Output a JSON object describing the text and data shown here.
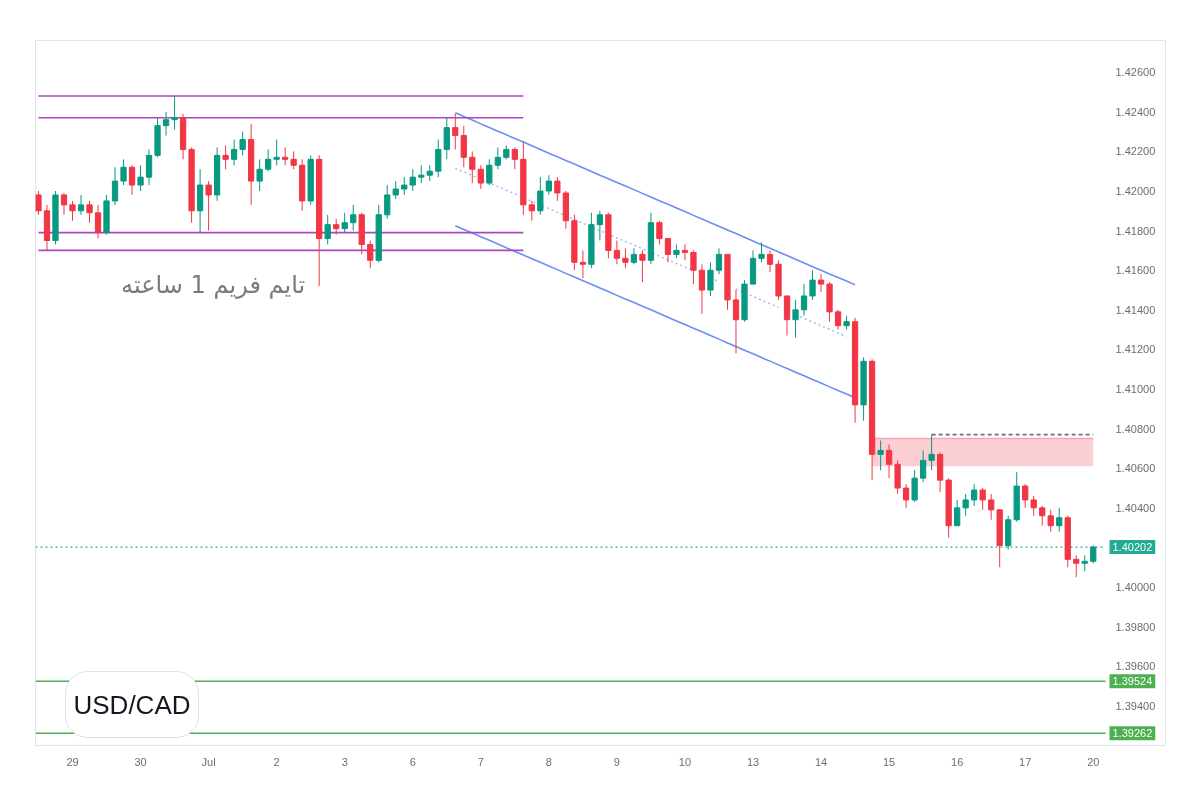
{
  "chart_data": {
    "type": "candlestick",
    "title": "USD/CAD",
    "annotations": [
      "تایم فریم 1 ساعته"
    ],
    "ylim": [
      1.392,
      1.4276
    ],
    "yticks": [
      {
        "value": 1.426,
        "label": "1.42600"
      },
      {
        "value": 1.424,
        "label": "1.42400"
      },
      {
        "value": 1.422,
        "label": "1.42200"
      },
      {
        "value": 1.42,
        "label": "1.42000"
      },
      {
        "value": 1.418,
        "label": "1.41800"
      },
      {
        "value": 1.416,
        "label": "1.41600"
      },
      {
        "value": 1.414,
        "label": "1.41400"
      },
      {
        "value": 1.412,
        "label": "1.41200"
      },
      {
        "value": 1.41,
        "label": "1.41000"
      },
      {
        "value": 1.408,
        "label": "1.40800"
      },
      {
        "value": 1.406,
        "label": "1.40600"
      },
      {
        "value": 1.404,
        "label": "1.40400"
      },
      {
        "value": 1.4,
        "label": "1.40000"
      },
      {
        "value": 1.398,
        "label": "1.39800"
      },
      {
        "value": 1.396,
        "label": "1.39600"
      },
      {
        "value": 1.394,
        "label": "1.39400"
      }
    ],
    "categories": [
      null,
      null,
      null,
      null,
      "29",
      null,
      null,
      null,
      null,
      null,
      null,
      null,
      "30",
      null,
      null,
      null,
      null,
      null,
      null,
      null,
      "Jul",
      null,
      null,
      null,
      null,
      null,
      null,
      null,
      "2",
      null,
      null,
      null,
      null,
      null,
      null,
      null,
      "3",
      null,
      null,
      null,
      null,
      null,
      null,
      null,
      "6",
      null,
      null,
      null,
      null,
      null,
      null,
      null,
      "7",
      null,
      null,
      null,
      null,
      null,
      null,
      null,
      "8",
      null,
      null,
      null,
      null,
      null,
      null,
      null,
      "9",
      null,
      null,
      null,
      null,
      null,
      null,
      null,
      "10",
      null,
      null,
      null,
      null,
      null,
      null,
      null,
      "13",
      null,
      null,
      null,
      null,
      null,
      null,
      null,
      "14",
      null,
      null,
      null,
      null,
      null,
      null,
      null,
      "15",
      null,
      null,
      null,
      null,
      null,
      null,
      null,
      "16",
      null,
      null,
      null,
      null,
      null,
      null,
      null,
      "17",
      null,
      null,
      null,
      null,
      null,
      null,
      null,
      "20"
    ],
    "ohlc": [
      [
        1.4198,
        1.42,
        1.4188,
        1.419
      ],
      [
        1.419,
        1.4193,
        1.417,
        1.4175
      ],
      [
        1.4175,
        1.42,
        1.4173,
        1.4198
      ],
      [
        1.4198,
        1.4199,
        1.4188,
        1.4193
      ],
      [
        1.4193,
        1.4195,
        1.4185,
        1.419
      ],
      [
        1.419,
        1.4198,
        1.4188,
        1.4193
      ],
      [
        1.4193,
        1.4195,
        1.4184,
        1.4189
      ],
      [
        1.4189,
        1.4193,
        1.4176,
        1.4179
      ],
      [
        1.4179,
        1.4198,
        1.4178,
        1.4195
      ],
      [
        1.4195,
        1.4212,
        1.4193,
        1.4205
      ],
      [
        1.4205,
        1.4216,
        1.4203,
        1.4212
      ],
      [
        1.4212,
        1.4213,
        1.4198,
        1.4203
      ],
      [
        1.4203,
        1.4213,
        1.42,
        1.4207
      ],
      [
        1.4207,
        1.4221,
        1.4203,
        1.4218
      ],
      [
        1.4218,
        1.4237,
        1.4217,
        1.4233
      ],
      [
        1.4233,
        1.424,
        1.4228,
        1.4236
      ],
      [
        1.4236,
        1.4248,
        1.4231,
        1.4237
      ],
      [
        1.4237,
        1.4239,
        1.4216,
        1.4221
      ],
      [
        1.4221,
        1.4222,
        1.4184,
        1.419
      ],
      [
        1.419,
        1.4211,
        1.4179,
        1.4203
      ],
      [
        1.4203,
        1.4205,
        1.418,
        1.4198
      ],
      [
        1.4198,
        1.4222,
        1.4195,
        1.4218
      ],
      [
        1.4218,
        1.4223,
        1.4211,
        1.4216
      ],
      [
        1.4216,
        1.4226,
        1.4213,
        1.4221
      ],
      [
        1.4221,
        1.423,
        1.4218,
        1.4226
      ],
      [
        1.4226,
        1.4234,
        1.4193,
        1.4205
      ],
      [
        1.4205,
        1.4216,
        1.42,
        1.4211
      ],
      [
        1.4211,
        1.4221,
        1.421,
        1.4216
      ],
      [
        1.4216,
        1.4226,
        1.4213,
        1.4217
      ],
      [
        1.4217,
        1.4222,
        1.4213,
        1.4216
      ],
      [
        1.4216,
        1.422,
        1.4211,
        1.4213
      ],
      [
        1.4213,
        1.4216,
        1.419,
        1.4195
      ],
      [
        1.4195,
        1.4218,
        1.4193,
        1.4216
      ],
      [
        1.4216,
        1.4218,
        1.4152,
        1.4176
      ],
      [
        1.4176,
        1.4188,
        1.4173,
        1.4183
      ],
      [
        1.4183,
        1.4186,
        1.4178,
        1.4181
      ],
      [
        1.4181,
        1.4189,
        1.4179,
        1.4184
      ],
      [
        1.4184,
        1.4193,
        1.418,
        1.4188
      ],
      [
        1.4188,
        1.4189,
        1.4168,
        1.4173
      ],
      [
        1.4173,
        1.4175,
        1.4161,
        1.4165
      ],
      [
        1.4165,
        1.4193,
        1.4164,
        1.4188
      ],
      [
        1.4188,
        1.4203,
        1.4186,
        1.4198
      ],
      [
        1.4198,
        1.4205,
        1.4196,
        1.4201
      ],
      [
        1.4201,
        1.4207,
        1.4198,
        1.4203
      ],
      [
        1.4203,
        1.4211,
        1.42,
        1.4207
      ],
      [
        1.4207,
        1.4213,
        1.4204,
        1.4208
      ],
      [
        1.4208,
        1.4213,
        1.4205,
        1.421
      ],
      [
        1.421,
        1.4226,
        1.4207,
        1.4221
      ],
      [
        1.4221,
        1.4237,
        1.4216,
        1.4232
      ],
      [
        1.4232,
        1.4239,
        1.4221,
        1.4228
      ],
      [
        1.4228,
        1.4233,
        1.4212,
        1.4217
      ],
      [
        1.4217,
        1.422,
        1.4204,
        1.4211
      ],
      [
        1.4211,
        1.4213,
        1.4201,
        1.4204
      ],
      [
        1.4204,
        1.4216,
        1.4203,
        1.4213
      ],
      [
        1.4213,
        1.4222,
        1.4211,
        1.4217
      ],
      [
        1.4217,
        1.4223,
        1.4216,
        1.4221
      ],
      [
        1.4221,
        1.4222,
        1.4211,
        1.4216
      ],
      [
        1.4216,
        1.4225,
        1.4188,
        1.4193
      ],
      [
        1.4193,
        1.4195,
        1.4185,
        1.419
      ],
      [
        1.419,
        1.4207,
        1.4188,
        1.42
      ],
      [
        1.42,
        1.4208,
        1.4198,
        1.4205
      ],
      [
        1.4205,
        1.4207,
        1.4195,
        1.4199
      ],
      [
        1.4199,
        1.42,
        1.4181,
        1.4185
      ],
      [
        1.4185,
        1.4188,
        1.416,
        1.4164
      ],
      [
        1.4164,
        1.417,
        1.4156,
        1.4163
      ],
      [
        1.4163,
        1.4189,
        1.4161,
        1.4183
      ],
      [
        1.4183,
        1.419,
        1.4175,
        1.4188
      ],
      [
        1.4188,
        1.4189,
        1.4166,
        1.417
      ],
      [
        1.417,
        1.4175,
        1.4163,
        1.4166
      ],
      [
        1.4166,
        1.4171,
        1.4161,
        1.4164
      ],
      [
        1.4164,
        1.4171,
        1.4163,
        1.4168
      ],
      [
        1.4168,
        1.417,
        1.4154,
        1.4165
      ],
      [
        1.4165,
        1.4189,
        1.4163,
        1.4184
      ],
      [
        1.4184,
        1.4185,
        1.4173,
        1.4176
      ],
      [
        1.4176,
        1.4176,
        1.4164,
        1.4168
      ],
      [
        1.4168,
        1.4173,
        1.4166,
        1.417
      ],
      [
        1.417,
        1.4173,
        1.4165,
        1.4169
      ],
      [
        1.4169,
        1.417,
        1.4153,
        1.416
      ],
      [
        1.416,
        1.4163,
        1.4138,
        1.415
      ],
      [
        1.415,
        1.4164,
        1.4147,
        1.416
      ],
      [
        1.416,
        1.4171,
        1.4158,
        1.4168
      ],
      [
        1.4168,
        1.4168,
        1.414,
        1.4145
      ],
      [
        1.4145,
        1.415,
        1.4118,
        1.4135
      ],
      [
        1.4135,
        1.4155,
        1.4134,
        1.4153
      ],
      [
        1.4153,
        1.417,
        1.4153,
        1.4166
      ],
      [
        1.4166,
        1.4174,
        1.4164,
        1.4168
      ],
      [
        1.4168,
        1.417,
        1.4159,
        1.4163
      ],
      [
        1.4163,
        1.4165,
        1.4145,
        1.4147
      ],
      [
        1.4147,
        1.4147,
        1.4127,
        1.4135
      ],
      [
        1.4135,
        1.4145,
        1.4126,
        1.414
      ],
      [
        1.414,
        1.4153,
        1.4137,
        1.4147
      ],
      [
        1.4147,
        1.416,
        1.4145,
        1.4155
      ],
      [
        1.4155,
        1.4158,
        1.4149,
        1.4153
      ],
      [
        1.4153,
        1.4154,
        1.4134,
        1.4139
      ],
      [
        1.4139,
        1.414,
        1.413,
        1.4132
      ],
      [
        1.4132,
        1.4137,
        1.413,
        1.4134
      ],
      [
        1.4134,
        1.4136,
        1.4083,
        1.4092
      ],
      [
        1.4092,
        1.4116,
        1.4084,
        1.4114
      ],
      [
        1.4114,
        1.4115,
        1.4054,
        1.4067
      ],
      [
        1.4067,
        1.4074,
        1.4059,
        1.4069
      ],
      [
        1.4069,
        1.4072,
        1.4055,
        1.4062
      ],
      [
        1.4062,
        1.4064,
        1.4047,
        1.405
      ],
      [
        1.405,
        1.4052,
        1.404,
        1.4044
      ],
      [
        1.4044,
        1.4059,
        1.4043,
        1.4055
      ],
      [
        1.4055,
        1.4069,
        1.4053,
        1.4064
      ],
      [
        1.4064,
        1.4077,
        1.4059,
        1.4067
      ],
      [
        1.4067,
        1.4068,
        1.4048,
        1.4054
      ],
      [
        1.4054,
        1.4055,
        1.4025,
        1.4031
      ],
      [
        1.4031,
        1.4044,
        1.4031,
        1.404
      ],
      [
        1.404,
        1.4047,
        1.4036,
        1.4044
      ],
      [
        1.4044,
        1.4052,
        1.4041,
        1.4049
      ],
      [
        1.4049,
        1.405,
        1.4039,
        1.4044
      ],
      [
        1.4044,
        1.4047,
        1.4034,
        1.4039
      ],
      [
        1.4039,
        1.4039,
        1.401,
        1.4021
      ],
      [
        1.4021,
        1.4036,
        1.4019,
        1.4034
      ],
      [
        1.4034,
        1.4058,
        1.4033,
        1.4051
      ],
      [
        1.4051,
        1.4052,
        1.404,
        1.4044
      ],
      [
        1.4044,
        1.4046,
        1.4036,
        1.404
      ],
      [
        1.404,
        1.4041,
        1.4031,
        1.4036
      ],
      [
        1.4036,
        1.4039,
        1.4028,
        1.4031
      ],
      [
        1.4031,
        1.404,
        1.4028,
        1.4035
      ],
      [
        1.4035,
        1.4036,
        1.401,
        1.4014
      ],
      [
        1.4014,
        1.4016,
        1.4005,
        1.4012
      ],
      [
        1.4012,
        1.4016,
        1.4008,
        1.4013
      ],
      [
        1.4013,
        1.4021,
        1.4012,
        1.40202
      ]
    ],
    "colors": [
      "#f23645",
      "#f23645",
      "#089981",
      "#f23645",
      "#f23645",
      "#089981",
      "#f23645",
      "#f23645",
      "#089981",
      "#089981",
      "#089981",
      "#f23645",
      "#089981",
      "#089981",
      "#089981",
      "#089981",
      "#089981",
      "#f23645",
      "#f23645",
      "#089981",
      "#f23645",
      "#089981",
      "#f23645",
      "#089981",
      "#089981",
      "#f23645",
      "#089981",
      "#089981",
      "#089981",
      "#f23645",
      "#f23645",
      "#f23645",
      "#089981",
      "#f23645",
      "#089981",
      "#f23645",
      "#089981",
      "#089981",
      "#f23645",
      "#f23645",
      "#089981",
      "#089981",
      "#089981",
      "#089981",
      "#089981",
      "#089981",
      "#089981",
      "#089981",
      "#089981",
      "#f23645",
      "#f23645",
      "#f23645",
      "#f23645",
      "#089981",
      "#089981",
      "#089981",
      "#f23645",
      "#f23645",
      "#f23645",
      "#089981",
      "#089981",
      "#f23645",
      "#f23645",
      "#f23645",
      "#f23645",
      "#089981",
      "#089981",
      "#f23645",
      "#f23645",
      "#f23645",
      "#089981",
      "#f23645",
      "#089981",
      "#f23645",
      "#f23645",
      "#089981",
      "#f23645",
      "#f23645",
      "#f23645",
      "#089981",
      "#089981",
      "#f23645",
      "#f23645",
      "#089981",
      "#089981",
      "#089981",
      "#f23645",
      "#f23645",
      "#f23645",
      "#089981",
      "#089981",
      "#089981",
      "#f23645",
      "#f23645",
      "#f23645",
      "#089981",
      "#f23645",
      "#089981",
      "#f23645",
      "#089981",
      "#f23645",
      "#f23645",
      "#f23645",
      "#089981",
      "#089981",
      "#089981",
      "#f23645",
      "#f23645",
      "#089981",
      "#089981",
      "#089981",
      "#f23645",
      "#f23645",
      "#f23645",
      "#089981",
      "#089981",
      "#f23645",
      "#f23645",
      "#f23645",
      "#f23645",
      "#089981",
      "#f23645",
      "#f23645",
      "#089981",
      "#089981"
    ],
    "series": [
      {
        "type": "line",
        "color": "#6b8ef5",
        "values": [
          null,
          null,
          null,
          null,
          null,
          null,
          null,
          null,
          null,
          null,
          null,
          null,
          null,
          null,
          null,
          null,
          null,
          null,
          null,
          null,
          null,
          null,
          null,
          null,
          null,
          null,
          null,
          null,
          null,
          null,
          null,
          null,
          null,
          null,
          null,
          null,
          null,
          null,
          null,
          null,
          null,
          null,
          null,
          null,
          null,
          null,
          null,
          null,
          null,
          1.42395,
          1.42376,
          1.42358,
          1.42339,
          1.42321,
          1.42302,
          1.42284,
          1.42265,
          1.42247,
          1.42228,
          1.4221,
          1.42191,
          1.42173,
          1.42154,
          1.42136,
          1.42117,
          1.42099,
          1.4208,
          1.42062,
          1.42043,
          1.42025,
          1.42007,
          1.41988,
          1.4197,
          1.41951,
          1.41933,
          1.41914,
          1.41896,
          1.41877,
          1.41859,
          1.4184,
          1.41822,
          1.41803,
          1.41785,
          1.41766,
          1.41748,
          1.41729,
          1.41711,
          1.41692,
          1.41674,
          1.41655,
          1.41637,
          1.41618,
          1.416,
          1.41581,
          1.41563,
          1.41545,
          1.41526,
          null,
          null,
          null,
          null,
          null,
          null,
          null,
          null,
          null,
          null,
          null,
          null,
          null,
          null,
          null,
          null,
          null,
          null,
          null,
          null,
          null,
          null,
          null,
          null,
          null,
          null,
          null,
          null
        ]
      },
      {
        "type": "line",
        "color": "#6b8ef5",
        "values": [
          null,
          null,
          null,
          null,
          null,
          null,
          null,
          null,
          null,
          null,
          null,
          null,
          null,
          null,
          null,
          null,
          null,
          null,
          null,
          null,
          null,
          null,
          null,
          null,
          null,
          null,
          null,
          null,
          null,
          null,
          null,
          null,
          null,
          null,
          null,
          null,
          null,
          null,
          null,
          null,
          null,
          null,
          null,
          null,
          null,
          null,
          null,
          null,
          null,
          1.41825,
          1.41806,
          1.41788,
          1.41769,
          1.41751,
          1.41732,
          1.41714,
          1.41695,
          1.41677,
          1.41658,
          1.4164,
          1.41621,
          1.41603,
          1.41584,
          1.41566,
          1.41547,
          1.41529,
          1.4151,
          1.41492,
          1.41473,
          1.41455,
          1.41437,
          1.41418,
          1.414,
          1.41381,
          1.41363,
          1.41344,
          1.41326,
          1.41307,
          1.41289,
          1.4127,
          1.41252,
          1.41233,
          1.41215,
          1.41196,
          1.41178,
          1.41159,
          1.41141,
          1.41122,
          1.41104,
          1.41085,
          1.41067,
          1.41048,
          1.4103,
          1.41011,
          1.40993,
          1.40975,
          1.40956,
          null,
          null,
          null,
          null,
          null,
          null,
          null,
          null,
          null,
          null,
          null,
          null,
          null,
          null,
          null,
          null,
          null,
          null,
          null,
          null,
          null,
          null,
          null,
          null,
          null,
          null,
          null,
          null
        ]
      },
      {
        "type": "line",
        "color": "#a9bdf7",
        "line_style": "dotted",
        "values": [
          null,
          null,
          null,
          null,
          null,
          null,
          null,
          null,
          null,
          null,
          null,
          null,
          null,
          null,
          null,
          null,
          null,
          null,
          null,
          null,
          null,
          null,
          null,
          null,
          null,
          null,
          null,
          null,
          null,
          null,
          null,
          null,
          null,
          null,
          null,
          null,
          null,
          null,
          null,
          null,
          null,
          null,
          null,
          null,
          null,
          null,
          null,
          null,
          null,
          1.42115,
          1.42096,
          1.42078,
          1.42059,
          1.42041,
          1.42022,
          1.42004,
          1.41985,
          1.41967,
          1.41948,
          1.4193,
          1.41911,
          1.41893,
          1.41874,
          1.41856,
          1.41837,
          1.41819,
          1.418,
          1.41782,
          1.41763,
          1.41745,
          1.41727,
          1.41708,
          1.4169,
          1.41671,
          1.41653,
          1.41634,
          1.41616,
          1.41597,
          null,
          1.4156,
          1.41542,
          null,
          1.41505,
          1.41486,
          1.41468,
          1.41449,
          1.41431,
          1.41412,
          null,
          1.41375,
          1.41357,
          1.41338,
          1.4132,
          1.41301,
          1.41283,
          1.41265,
          null,
          null,
          null,
          null,
          null,
          null,
          null,
          null,
          null,
          null,
          null,
          null,
          null,
          null,
          null,
          null,
          null,
          null,
          null,
          null,
          null,
          null,
          null,
          null,
          null,
          null,
          null,
          null,
          null
        ]
      },
      {
        "type": "line",
        "color": "#ab47bc",
        "values": [
          1.4248,
          1.4248,
          1.4248,
          1.4248,
          1.4248,
          1.4248,
          1.4248,
          1.4248,
          1.4248,
          1.4248,
          1.4248,
          1.4248,
          1.4248,
          1.4248,
          1.4248,
          1.4248,
          1.4248,
          1.4248,
          1.4248,
          1.4248,
          1.4248,
          1.4248,
          1.4248,
          1.4248,
          1.4248,
          1.4248,
          1.4248,
          1.4248,
          1.4248,
          1.4248,
          1.4248,
          1.4248,
          1.4248,
          1.4248,
          1.4248,
          1.4248,
          1.4248,
          1.4248,
          1.4248,
          1.4248,
          1.4248,
          1.4248,
          1.4248,
          1.4248,
          1.4248,
          1.4248,
          1.4248,
          1.4248,
          1.4248,
          1.4248,
          1.4248,
          1.4248,
          1.4248,
          1.4248,
          1.4248,
          1.4248,
          1.4248,
          1.4248,
          null,
          null,
          null,
          null,
          null,
          null,
          null,
          null,
          null,
          null,
          null,
          null,
          null,
          null,
          null,
          null,
          null,
          null,
          null,
          null,
          null,
          null,
          null,
          null,
          null,
          null,
          null,
          null,
          null,
          null,
          null,
          null,
          null,
          null,
          null,
          null,
          null,
          null,
          null,
          null,
          null,
          null,
          null,
          null,
          null,
          null,
          null,
          null,
          null,
          null,
          null,
          null,
          null,
          null,
          null,
          null,
          null,
          null,
          null,
          null,
          null,
          null,
          null,
          null,
          null,
          null,
          null
        ]
      },
      {
        "type": "line",
        "color": "#ab47bc",
        "values": [
          1.4237,
          1.4237,
          1.4237,
          1.4237,
          1.4237,
          1.4237,
          1.4237,
          1.4237,
          1.4237,
          1.4237,
          1.4237,
          1.4237,
          1.4237,
          1.4237,
          1.4237,
          1.4237,
          1.4237,
          1.4237,
          1.4237,
          1.4237,
          1.4237,
          1.4237,
          1.4237,
          1.4237,
          1.4237,
          1.4237,
          1.4237,
          1.4237,
          1.4237,
          1.4237,
          1.4237,
          1.4237,
          1.4237,
          1.4237,
          1.4237,
          1.4237,
          1.4237,
          1.4237,
          1.4237,
          1.4237,
          1.4237,
          1.4237,
          1.4237,
          1.4237,
          1.4237,
          1.4237,
          1.4237,
          1.4237,
          1.4237,
          1.4237,
          1.4237,
          1.4237,
          1.4237,
          1.4237,
          1.4237,
          1.4237,
          1.4237,
          1.4237,
          null,
          null,
          null,
          null,
          null,
          null,
          null,
          null,
          null,
          null,
          null,
          null,
          null,
          null,
          null,
          null,
          null,
          null,
          null,
          null,
          null,
          null,
          null,
          null,
          null,
          null,
          null,
          null,
          null,
          null,
          null,
          null,
          null,
          null,
          null,
          null,
          null,
          null,
          null,
          null,
          null,
          null,
          null,
          null,
          null,
          null,
          null,
          null,
          null,
          null,
          null,
          null,
          null,
          null,
          null,
          null,
          null,
          null,
          null,
          null,
          null,
          null,
          null,
          null,
          null,
          null,
          null
        ]
      },
      {
        "type": "line",
        "color": "#ab47bc",
        "values": [
          1.4179,
          1.4179,
          1.4179,
          1.4179,
          1.4179,
          1.4179,
          1.4179,
          1.4179,
          1.4179,
          1.4179,
          1.4179,
          1.4179,
          1.4179,
          1.4179,
          1.4179,
          1.4179,
          1.4179,
          1.4179,
          1.4179,
          1.4179,
          1.4179,
          1.4179,
          1.4179,
          1.4179,
          1.4179,
          1.4179,
          1.4179,
          1.4179,
          1.4179,
          1.4179,
          1.4179,
          1.4179,
          1.4179,
          1.4179,
          1.4179,
          1.4179,
          1.4179,
          1.4179,
          1.4179,
          1.4179,
          1.4179,
          1.4179,
          1.4179,
          1.4179,
          1.4179,
          1.4179,
          1.4179,
          1.4179,
          1.4179,
          1.4179,
          1.4179,
          1.4179,
          1.4179,
          1.4179,
          1.4179,
          1.4179,
          1.4179,
          1.4179,
          null,
          null,
          null,
          null,
          null,
          null,
          null,
          null,
          null,
          null,
          null,
          null,
          null,
          null,
          null,
          null,
          null,
          null,
          null,
          null,
          null,
          null,
          null,
          null,
          null,
          null,
          null,
          null,
          null,
          null,
          null,
          null,
          null,
          null,
          null,
          null,
          null,
          null,
          null,
          null,
          null,
          null,
          null,
          null,
          null,
          null,
          null,
          null,
          null,
          null,
          null,
          null,
          null,
          null,
          null,
          null,
          null,
          null,
          null,
          null,
          null,
          null,
          null,
          null,
          null,
          null,
          null
        ]
      },
      {
        "type": "line",
        "color": "#ab47bc",
        "values": [
          1.417,
          1.417,
          1.417,
          1.417,
          1.417,
          1.417,
          1.417,
          1.417,
          1.417,
          1.417,
          1.417,
          1.417,
          1.417,
          1.417,
          1.417,
          1.417,
          1.417,
          1.417,
          1.417,
          1.417,
          1.417,
          1.417,
          1.417,
          1.417,
          1.417,
          1.417,
          1.417,
          1.417,
          1.417,
          1.417,
          1.417,
          1.417,
          1.417,
          1.417,
          1.417,
          1.417,
          1.417,
          1.417,
          1.417,
          1.417,
          1.417,
          1.417,
          1.417,
          1.417,
          1.417,
          1.417,
          1.417,
          1.417,
          1.417,
          1.417,
          1.417,
          1.417,
          1.417,
          1.417,
          1.417,
          1.417,
          1.417,
          1.417,
          null,
          null,
          null,
          null,
          null,
          null,
          null,
          null,
          null,
          null,
          null,
          null,
          null,
          null,
          null,
          null,
          null,
          null,
          null,
          null,
          null,
          null,
          null,
          null,
          null,
          null,
          null,
          null,
          null,
          null,
          null,
          null,
          null,
          null,
          null,
          null,
          null,
          null,
          null,
          null,
          null,
          null,
          null,
          null,
          null,
          null,
          null,
          null,
          null,
          null,
          null,
          null,
          null,
          null,
          null,
          null,
          null,
          null,
          null,
          null,
          null,
          null,
          null,
          null,
          null,
          null,
          null
        ]
      },
      {
        "type": "line",
        "color": "#f7a8ae",
        "values": [
          null,
          null,
          null,
          null,
          null,
          null,
          null,
          null,
          null,
          null,
          null,
          null,
          null,
          null,
          null,
          null,
          null,
          null,
          null,
          null,
          null,
          null,
          null,
          null,
          null,
          null,
          null,
          null,
          null,
          null,
          null,
          null,
          null,
          null,
          null,
          null,
          null,
          null,
          null,
          null,
          null,
          null,
          null,
          null,
          null,
          null,
          null,
          null,
          null,
          null,
          null,
          null,
          null,
          null,
          null,
          null,
          null,
          null,
          null,
          null,
          null,
          null,
          null,
          null,
          null,
          null,
          null,
          null,
          null,
          null,
          null,
          null,
          null,
          null,
          null,
          null,
          null,
          null,
          null,
          null,
          null,
          null,
          null,
          null,
          null,
          null,
          null,
          null,
          null,
          null,
          null,
          null,
          null,
          null,
          null,
          null,
          null,
          null,
          1.4075,
          1.4075,
          1.4075,
          1.4075,
          1.4075,
          1.4075,
          1.4075,
          1.4075,
          1.4075,
          1.4075,
          1.4075,
          1.4075,
          1.4075,
          1.4075,
          1.4075,
          1.4075,
          1.4075,
          1.4075,
          1.4075,
          1.4075,
          1.4075,
          1.4075,
          1.4075,
          1.4075,
          1.4075,
          1.4075,
          1.4075
        ],
        "upper": [
          null,
          null,
          null,
          null,
          null,
          null,
          null,
          null,
          null,
          null,
          null,
          null,
          null,
          null,
          null,
          null,
          null,
          null,
          null,
          null,
          null,
          null,
          null,
          null,
          null,
          null,
          null,
          null,
          null,
          null,
          null,
          null,
          null,
          null,
          null,
          null,
          null,
          null,
          null,
          null,
          null,
          null,
          null,
          null,
          null,
          null,
          null,
          null,
          null,
          null,
          null,
          null,
          null,
          null,
          null,
          null,
          null,
          null,
          null,
          null,
          null,
          null,
          null,
          null,
          null,
          null,
          null,
          null,
          null,
          null,
          null,
          null,
          null,
          null,
          null,
          null,
          null,
          null,
          null,
          null,
          null,
          null,
          null,
          null,
          null,
          null,
          null,
          null,
          null,
          null,
          null,
          null,
          null,
          null,
          null,
          null,
          null,
          null,
          1.4075,
          1.4075,
          1.4075,
          1.4075,
          1.4075,
          1.4075,
          1.4075,
          1.4075,
          1.4075,
          1.4075,
          1.4075,
          1.4075,
          1.4075,
          1.4075,
          1.4075,
          1.4075,
          1.4075,
          1.4075,
          1.4075,
          1.4075,
          1.4075,
          1.4075,
          1.4075,
          1.4075,
          1.4075,
          1.4075,
          1.4075
        ],
        "lower": [
          null,
          null,
          null,
          null,
          null,
          null,
          null,
          null,
          null,
          null,
          null,
          null,
          null,
          null,
          null,
          null,
          null,
          null,
          null,
          null,
          null,
          null,
          null,
          null,
          null,
          null,
          null,
          null,
          null,
          null,
          null,
          null,
          null,
          null,
          null,
          null,
          null,
          null,
          null,
          null,
          null,
          null,
          null,
          null,
          null,
          null,
          null,
          null,
          null,
          null,
          null,
          null,
          null,
          null,
          null,
          null,
          null,
          null,
          null,
          null,
          null,
          null,
          null,
          null,
          null,
          null,
          null,
          null,
          null,
          null,
          null,
          null,
          null,
          null,
          null,
          null,
          null,
          null,
          null,
          null,
          null,
          null,
          null,
          null,
          null,
          null,
          null,
          null,
          null,
          null,
          null,
          null,
          null,
          null,
          null,
          null,
          null,
          null,
          1.4061,
          1.4061,
          1.4061,
          1.4061,
          1.4061,
          1.4061,
          1.4061,
          1.4061,
          1.4061,
          1.4061,
          1.4061,
          1.4061,
          1.4061,
          1.4061,
          1.4061,
          1.4061,
          1.4061,
          1.4061,
          1.4061,
          1.4061,
          1.4061,
          1.4061,
          1.4061,
          1.4061,
          1.4061,
          1.4061,
          1.4061
        ]
      },
      {
        "type": "line",
        "color": "#6a6d78",
        "line_style": "dashed",
        "values": [
          null,
          null,
          null,
          null,
          null,
          null,
          null,
          null,
          null,
          null,
          null,
          null,
          null,
          null,
          null,
          null,
          null,
          null,
          null,
          null,
          null,
          null,
          null,
          null,
          null,
          null,
          null,
          null,
          null,
          null,
          null,
          null,
          null,
          null,
          null,
          null,
          null,
          null,
          null,
          null,
          null,
          null,
          null,
          null,
          null,
          null,
          null,
          null,
          null,
          null,
          null,
          null,
          null,
          null,
          null,
          null,
          null,
          null,
          null,
          null,
          null,
          null,
          null,
          null,
          null,
          null,
          null,
          null,
          null,
          null,
          null,
          null,
          null,
          null,
          null,
          null,
          null,
          null,
          null,
          null,
          null,
          null,
          null,
          null,
          null,
          null,
          null,
          null,
          null,
          null,
          null,
          null,
          null,
          null,
          null,
          null,
          null,
          null,
          null,
          null,
          null,
          null,
          null,
          null,
          null,
          1.4077,
          1.4077,
          1.4077,
          1.4077,
          1.4077,
          1.4077,
          1.4077,
          1.4077,
          1.4077,
          1.4077,
          1.4077,
          1.4077,
          1.4077,
          1.4077,
          1.4077,
          1.4077,
          1.4077,
          1.4077,
          1.4077,
          1.4077
        ]
      }
    ],
    "ref_lines": [
      {
        "axis": "y",
        "value": 1.40202,
        "label": "1.40202",
        "color": "#22ab94",
        "line_style": "dotted"
      },
      {
        "axis": "y",
        "value": 1.39524,
        "label": "1.39524",
        "color": "#4caf50"
      },
      {
        "axis": "y",
        "value": 1.39262,
        "label": "1.39262",
        "color": "#4caf50"
      }
    ]
  }
}
